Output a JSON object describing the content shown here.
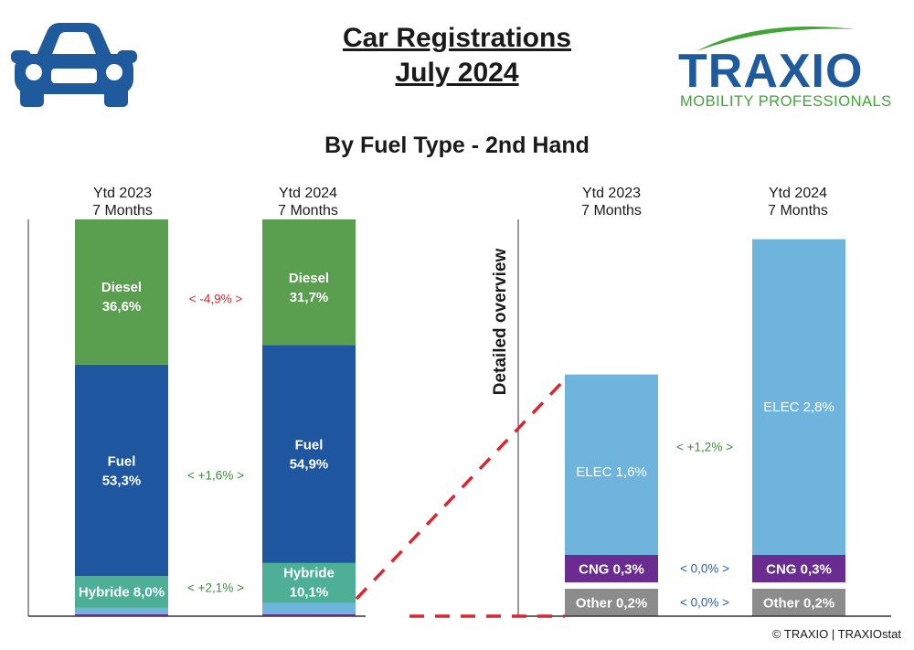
{
  "header": {
    "title_line1": "Car Registrations",
    "title_line2": "July 2024",
    "subtitle": "By Fuel Type - 2nd Hand",
    "logo_main": "TRAXIO",
    "logo_sub": "MOBILITY PROFESSIONALS",
    "copyright": "© TRAXIO | TRAXIOstat",
    "car_icon": "car-icon"
  },
  "colors": {
    "diesel": "#5a9e50",
    "fuel": "#1f56a0",
    "hybride": "#4caf96",
    "elec": "#6eb4dc",
    "cng": "#6b2c91",
    "other": "#8c8c8c",
    "positive": "#3a8f3a",
    "negative": "#d9262f",
    "neutral": "#2b5fad"
  },
  "chart_data": [
    {
      "type": "bar",
      "title": "By Fuel Type - 2nd Hand",
      "stacked": true,
      "categories": [
        "Ytd 2023\n7 Months",
        "Ytd 2024\n7 Months"
      ],
      "category_lines": [
        [
          "Ytd 2023",
          "7 Months"
        ],
        [
          "Ytd 2024",
          "7 Months"
        ]
      ],
      "series": [
        {
          "name": "Other",
          "values": [
            0.2,
            0.2
          ]
        },
        {
          "name": "CNG",
          "values": [
            0.3,
            0.3
          ]
        },
        {
          "name": "ELEC",
          "values": [
            1.6,
            2.8
          ]
        },
        {
          "name": "Hybride",
          "values": [
            8.0,
            10.1
          ]
        },
        {
          "name": "Fuel",
          "values": [
            53.3,
            54.9
          ]
        },
        {
          "name": "Diesel",
          "values": [
            36.6,
            31.7
          ]
        }
      ],
      "labels": [
        {
          "series": "Diesel",
          "text": [
            "Diesel\n36,6%",
            "Diesel\n31,7%"
          ]
        },
        {
          "series": "Fuel",
          "text": [
            "Fuel\n53,3%",
            "Fuel\n54,9%"
          ]
        },
        {
          "series": "Hybride",
          "text": [
            "Hybride 8,0%",
            "Hybride\n10,1%"
          ]
        }
      ],
      "label_lines": {
        "Diesel": [
          [
            "Diesel",
            "36,6%"
          ],
          [
            "Diesel",
            "31,7%"
          ]
        ],
        "Fuel": [
          [
            "Fuel",
            "53,3%"
          ],
          [
            "Fuel",
            "54,9%"
          ]
        ],
        "Hybride": [
          [
            "Hybride 8,0%"
          ],
          [
            "Hybride",
            "10,1%"
          ]
        ]
      },
      "changes": [
        {
          "series": "Diesel",
          "text": "<  -4,9%  >",
          "sign": "negative"
        },
        {
          "series": "Fuel",
          "text": "<  +1,6%  >",
          "sign": "positive"
        },
        {
          "series": "Hybride",
          "text": "<  +2,1%  >",
          "sign": "positive"
        }
      ],
      "ylim": [
        0,
        100
      ]
    },
    {
      "type": "bar",
      "title": "Detailed overview",
      "stacked": true,
      "categories": [
        "Ytd 2023\n7 Months",
        "Ytd 2024\n7 Months"
      ],
      "category_lines": [
        [
          "Ytd 2023",
          "7 Months"
        ],
        [
          "Ytd 2024",
          "7 Months"
        ]
      ],
      "series": [
        {
          "name": "Other",
          "values": [
            0.2,
            0.2
          ],
          "labels": [
            "Other 0,2%",
            "Other 0,2%"
          ]
        },
        {
          "name": "CNG",
          "values": [
            0.3,
            0.3
          ],
          "labels": [
            "CNG 0,3%",
            "CNG 0,3%"
          ]
        },
        {
          "name": "ELEC",
          "values": [
            1.6,
            2.8
          ],
          "labels": [
            "ELEC 1,6%",
            "ELEC 2,8%"
          ]
        }
      ],
      "changes": [
        {
          "series": "ELEC",
          "text": "<  +1,2%  >",
          "sign": "positive"
        },
        {
          "series": "CNG",
          "text": "<  0,0%  >",
          "sign": "neutral"
        },
        {
          "series": "Other",
          "text": "<  0,0%  >",
          "sign": "neutral"
        }
      ],
      "ylim": [
        0,
        3.3
      ]
    }
  ]
}
